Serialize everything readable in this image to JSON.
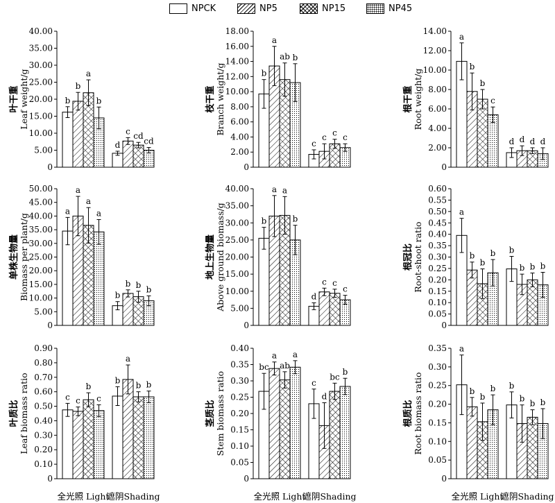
{
  "legend": [
    {
      "label": "NPCK",
      "pattern": "open"
    },
    {
      "label": "NP5",
      "pattern": "hatch"
    },
    {
      "label": "NP15",
      "pattern": "cross"
    },
    {
      "label": "NP45",
      "pattern": "dots"
    }
  ],
  "chart_data": [
    {
      "type": "bar",
      "ylabel_cn": "叶干重",
      "ylabel_en": "Leaf weight/g",
      "ylim": [
        0,
        40
      ],
      "yticks": [
        "0",
        "5.00",
        "10.00",
        "15.00",
        "20.00",
        "25.00",
        "30.00",
        "35.00",
        "40.00"
      ],
      "tick_values": [
        0,
        5,
        10,
        15,
        20,
        25,
        30,
        35,
        40
      ],
      "categories": [
        "全光照 Light",
        "遮阴Shading"
      ],
      "series": [
        {
          "name": "NPCK",
          "values": [
            16.2,
            4.1
          ],
          "errors": [
            1.6,
            0.6
          ],
          "letters": [
            "b",
            "d"
          ]
        },
        {
          "name": "NP5",
          "values": [
            19.4,
            7.7
          ],
          "errors": [
            2.6,
            1.0
          ],
          "letters": [
            "b",
            "c"
          ]
        },
        {
          "name": "NP15",
          "values": [
            21.9,
            6.5
          ],
          "errors": [
            3.8,
            0.8
          ],
          "letters": [
            "a",
            "cd"
          ]
        },
        {
          "name": "NP45",
          "values": [
            14.5,
            5.0
          ],
          "errors": [
            3.2,
            0.8
          ],
          "letters": [
            "b",
            "cd"
          ]
        }
      ]
    },
    {
      "type": "bar",
      "ylabel_cn": "枝干重",
      "ylabel_en": "Branch weight/g",
      "ylim": [
        0,
        18
      ],
      "yticks": [
        "0",
        "2.00",
        "4.00",
        "6.00",
        "8.00",
        "10.00",
        "12.00",
        "14.00",
        "16.00",
        "18.00"
      ],
      "tick_values": [
        0,
        2,
        4,
        6,
        8,
        10,
        12,
        14,
        16,
        18
      ],
      "categories": [
        "全光照 Light",
        "遮阴Shading"
      ],
      "series": [
        {
          "name": "NPCK",
          "values": [
            9.7,
            1.7
          ],
          "errors": [
            1.9,
            0.6
          ],
          "letters": [
            "b",
            "c"
          ]
        },
        {
          "name": "NP5",
          "values": [
            13.4,
            2.1
          ],
          "errors": [
            2.6,
            1.0
          ],
          "letters": [
            "a",
            "c"
          ]
        },
        {
          "name": "NP15",
          "values": [
            11.6,
            3.1
          ],
          "errors": [
            2.2,
            0.6
          ],
          "letters": [
            "ab",
            "c"
          ]
        },
        {
          "name": "NP45",
          "values": [
            11.2,
            2.6
          ],
          "errors": [
            2.5,
            0.5
          ],
          "letters": [
            "b",
            "c"
          ]
        }
      ]
    },
    {
      "type": "bar",
      "ylabel_cn": "根干重",
      "ylabel_en": "Root weight/g",
      "ylim": [
        0,
        14
      ],
      "yticks": [
        "0",
        "2.00",
        "4.00",
        "6.00",
        "8.00",
        "10.00",
        "12.00",
        "14.00"
      ],
      "tick_values": [
        0,
        2,
        4,
        6,
        8,
        10,
        12,
        14
      ],
      "categories": [
        "全光照 Light",
        "遮阴Shading"
      ],
      "series": [
        {
          "name": "NPCK",
          "values": [
            10.9,
            1.5
          ],
          "errors": [
            1.9,
            0.5
          ],
          "letters": [
            "a",
            "d"
          ]
        },
        {
          "name": "NP5",
          "values": [
            7.8,
            1.7
          ],
          "errors": [
            1.9,
            0.5
          ],
          "letters": [
            "b",
            "d"
          ]
        },
        {
          "name": "NP15",
          "values": [
            7.0,
            1.7
          ],
          "errors": [
            1.0,
            0.3
          ],
          "letters": [
            "b",
            "d"
          ]
        },
        {
          "name": "NP45",
          "values": [
            5.4,
            1.4
          ],
          "errors": [
            0.8,
            0.6
          ],
          "letters": [
            "c",
            "d"
          ]
        }
      ]
    },
    {
      "type": "bar",
      "ylabel_cn": "单株生物量",
      "ylabel_en": "Biomass per plant/g",
      "ylim": [
        0,
        50
      ],
      "yticks": [
        "0",
        "5.00",
        "10.00",
        "15.00",
        "20.00",
        "25.00",
        "30.00",
        "35.00",
        "40.00",
        "45.00",
        "50.00"
      ],
      "tick_values": [
        0,
        5,
        10,
        15,
        20,
        25,
        30,
        35,
        40,
        45,
        50
      ],
      "categories": [
        "全光照 Light",
        "遮阴Shading"
      ],
      "series": [
        {
          "name": "NPCK",
          "values": [
            34.5,
            7.2
          ],
          "errors": [
            5.0,
            1.5
          ],
          "letters": [
            "a",
            "b"
          ]
        },
        {
          "name": "NP5",
          "values": [
            40.0,
            11.7
          ],
          "errors": [
            7.2,
            1.3
          ],
          "letters": [
            "a",
            "b"
          ]
        },
        {
          "name": "NP15",
          "values": [
            36.6,
            10.5
          ],
          "errors": [
            6.5,
            2.0
          ],
          "letters": [
            "a",
            "b"
          ]
        },
        {
          "name": "NP45",
          "values": [
            34.2,
            9.0
          ],
          "errors": [
            4.5,
            1.8
          ],
          "letters": [
            "a",
            "b"
          ]
        }
      ]
    },
    {
      "type": "bar",
      "ylabel_cn": "地上生物量",
      "ylabel_en": "Above ground biomass/g",
      "ylim": [
        0,
        40
      ],
      "yticks": [
        "0",
        "5.00",
        "10.00",
        "15.00",
        "20.00",
        "25.00",
        "30.00",
        "35.00",
        "40.00"
      ],
      "tick_values": [
        0,
        5,
        10,
        15,
        20,
        25,
        30,
        35,
        40
      ],
      "categories": [
        "全光照 Light",
        "遮阴Shading"
      ],
      "series": [
        {
          "name": "NPCK",
          "values": [
            25.5,
            5.6
          ],
          "errors": [
            3.2,
            1.0
          ],
          "letters": [
            "b",
            "d"
          ]
        },
        {
          "name": "NP5",
          "values": [
            32.0,
            9.8
          ],
          "errors": [
            6.0,
            1.1
          ],
          "letters": [
            "a",
            "c"
          ]
        },
        {
          "name": "NP15",
          "values": [
            32.2,
            9.4
          ],
          "errors": [
            5.5,
            1.2
          ],
          "letters": [
            "a",
            "c"
          ]
        },
        {
          "name": "NP45",
          "values": [
            25.0,
            7.5
          ],
          "errors": [
            4.3,
            1.3
          ],
          "letters": [
            "b",
            "c"
          ]
        }
      ]
    },
    {
      "type": "bar",
      "ylabel_cn": "根冠比",
      "ylabel_en": "Root-shoot ratio",
      "ylim": [
        0,
        0.6
      ],
      "yticks": [
        "0",
        "0.05",
        "0.10",
        "0.15",
        "0.20",
        "0.25",
        "0.30",
        "0.35",
        "0.40",
        "0.45",
        "0.50",
        "0.55",
        "0.60"
      ],
      "tick_values": [
        0,
        0.05,
        0.1,
        0.15,
        0.2,
        0.25,
        0.3,
        0.35,
        0.4,
        0.45,
        0.5,
        0.55,
        0.6
      ],
      "categories": [
        "全光照 Light",
        "遮阴Shading"
      ],
      "series": [
        {
          "name": "NPCK",
          "values": [
            0.395,
            0.248
          ],
          "errors": [
            0.075,
            0.055
          ],
          "letters": [
            "a",
            "b"
          ]
        },
        {
          "name": "NP5",
          "values": [
            0.243,
            0.18
          ],
          "errors": [
            0.035,
            0.045
          ],
          "letters": [
            "b",
            "b"
          ]
        },
        {
          "name": "NP15",
          "values": [
            0.183,
            0.2
          ],
          "errors": [
            0.065,
            0.03
          ],
          "letters": [
            "b",
            "b"
          ]
        },
        {
          "name": "NP45",
          "values": [
            0.231,
            0.178
          ],
          "errors": [
            0.058,
            0.055
          ],
          "letters": [
            "b",
            "b"
          ]
        }
      ]
    },
    {
      "type": "bar",
      "ylabel_cn": "叶质比",
      "ylabel_en": "Leaf biomass ratio",
      "ylim": [
        0,
        0.9
      ],
      "yticks": [
        "0",
        "0.10",
        "0.20",
        "0.30",
        "0.40",
        "0.50",
        "0.60",
        "0.70",
        "0.80",
        "0.90"
      ],
      "tick_values": [
        0,
        0.1,
        0.2,
        0.3,
        0.4,
        0.5,
        0.6,
        0.7,
        0.8,
        0.9
      ],
      "categories": [
        "全光照 Light",
        "遮阴Shading"
      ],
      "series": [
        {
          "name": "NPCK",
          "values": [
            0.475,
            0.57
          ],
          "errors": [
            0.045,
            0.065
          ],
          "letters": [
            "c",
            "b"
          ]
        },
        {
          "name": "NP5",
          "values": [
            0.465,
            0.685
          ],
          "errors": [
            0.03,
            0.1
          ],
          "letters": [
            "c",
            "a"
          ]
        },
        {
          "name": "NP15",
          "values": [
            0.545,
            0.565
          ],
          "errors": [
            0.048,
            0.035
          ],
          "letters": [
            "b",
            "b"
          ]
        },
        {
          "name": "NP45",
          "values": [
            0.47,
            0.565
          ],
          "errors": [
            0.04,
            0.04
          ],
          "letters": [
            "c",
            "b"
          ]
        }
      ]
    },
    {
      "type": "bar",
      "ylabel_cn": "茎质比",
      "ylabel_en": "Stem biomass ratio",
      "ylim": [
        0,
        0.4
      ],
      "yticks": [
        "0",
        "0.05",
        "0.10",
        "0.15",
        "0.20",
        "0.25",
        "0.30",
        "0.35",
        "0.40"
      ],
      "tick_values": [
        0,
        0.05,
        0.1,
        0.15,
        0.2,
        0.25,
        0.3,
        0.35,
        0.4
      ],
      "categories": [
        "全光照 Light",
        "遮阴Shading"
      ],
      "series": [
        {
          "name": "NPCK",
          "values": [
            0.268,
            0.23
          ],
          "errors": [
            0.055,
            0.045
          ],
          "letters": [
            "bc",
            "c"
          ]
        },
        {
          "name": "NP5",
          "values": [
            0.338,
            0.163
          ],
          "errors": [
            0.02,
            0.07
          ],
          "letters": [
            "a",
            "d"
          ]
        },
        {
          "name": "NP15",
          "values": [
            0.303,
            0.268
          ],
          "errors": [
            0.025,
            0.025
          ],
          "letters": [
            "ab",
            "bc"
          ]
        },
        {
          "name": "NP45",
          "values": [
            0.342,
            0.283
          ],
          "errors": [
            0.02,
            0.025
          ],
          "letters": [
            "a",
            "b"
          ]
        }
      ]
    },
    {
      "type": "bar",
      "ylabel_cn": "根质比",
      "ylabel_en": "Root biomass ratio",
      "ylim": [
        0,
        0.35
      ],
      "yticks": [
        "0",
        "0.05",
        "0.10",
        "0.15",
        "0.20",
        "0.25",
        "0.30",
        "0.35"
      ],
      "tick_values": [
        0,
        0.05,
        0.1,
        0.15,
        0.2,
        0.25,
        0.3,
        0.35
      ],
      "categories": [
        "全光照 Light",
        "遮阴Shading"
      ],
      "series": [
        {
          "name": "NPCK",
          "values": [
            0.252,
            0.198
          ],
          "errors": [
            0.08,
            0.035
          ],
          "letters": [
            "a",
            "b"
          ]
        },
        {
          "name": "NP5",
          "values": [
            0.193,
            0.148
          ],
          "errors": [
            0.025,
            0.05
          ],
          "letters": [
            "b",
            "b"
          ]
        },
        {
          "name": "NP15",
          "values": [
            0.153,
            0.165
          ],
          "errors": [
            0.05,
            0.02
          ],
          "letters": [
            "b",
            "b"
          ]
        },
        {
          "name": "NP45",
          "values": [
            0.185,
            0.148
          ],
          "errors": [
            0.04,
            0.04
          ],
          "letters": [
            "b",
            "b"
          ]
        }
      ]
    }
  ]
}
